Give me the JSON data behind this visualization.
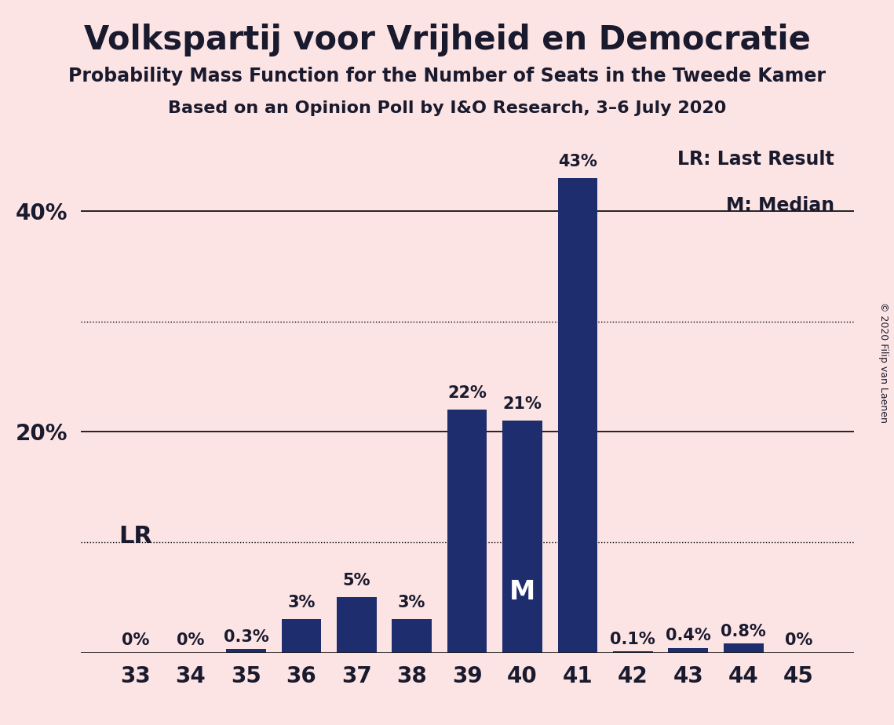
{
  "title": "Volkspartij voor Vrijheid en Democratie",
  "subtitle1": "Probability Mass Function for the Number of Seats in the Tweede Kamer",
  "subtitle2": "Based on an Opinion Poll by I&O Research, 3–6 July 2020",
  "copyright": "© 2020 Filip van Laenen",
  "categories": [
    33,
    34,
    35,
    36,
    37,
    38,
    39,
    40,
    41,
    42,
    43,
    44,
    45
  ],
  "values": [
    0.0,
    0.0,
    0.3,
    3.0,
    5.0,
    3.0,
    22.0,
    21.0,
    43.0,
    0.1,
    0.4,
    0.8,
    0.0
  ],
  "bar_color": "#1e2d6e",
  "background_color": "#fce4e4",
  "label_color": "#1a1a2e",
  "bar_labels": [
    "0%",
    "0%",
    "0.3%",
    "3%",
    "5%",
    "3%",
    "22%",
    "21%",
    "43%",
    "0.1%",
    "0.4%",
    "0.8%",
    "0%"
  ],
  "lr_seat": 33,
  "lr_label": "LR",
  "median_seat": 40,
  "median_label": "M",
  "solid_yticks": [
    0,
    20,
    40
  ],
  "dotted_yticks": [
    10,
    30
  ],
  "ylim": [
    0,
    47
  ],
  "legend_text1": "LR: Last Result",
  "legend_text2": "M: Median"
}
